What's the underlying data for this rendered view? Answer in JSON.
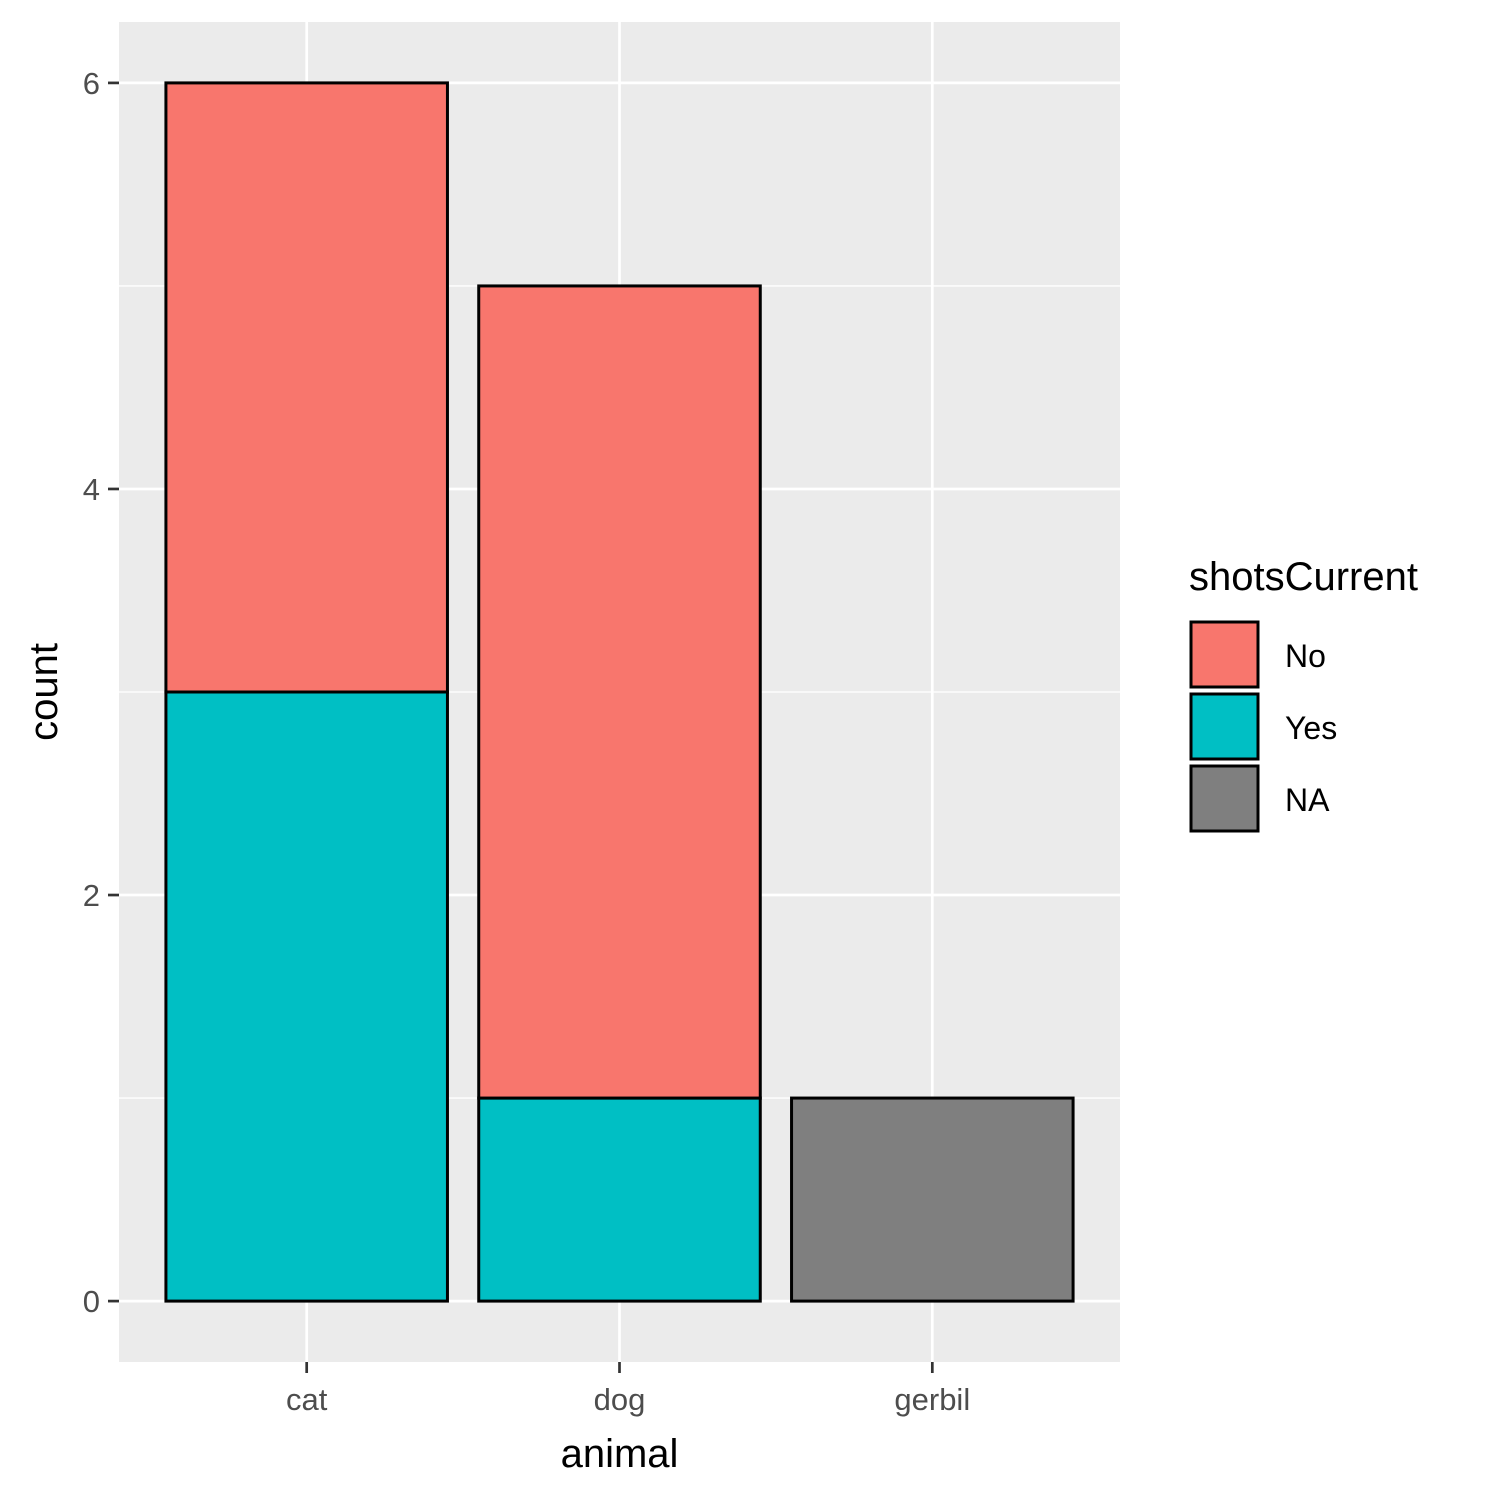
{
  "chart_data": {
    "type": "bar",
    "stacked": true,
    "categories": [
      "cat",
      "dog",
      "gerbil"
    ],
    "series": [
      {
        "name": "No",
        "values": [
          3,
          4,
          0
        ],
        "color": "#F8766D"
      },
      {
        "name": "Yes",
        "values": [
          3,
          1,
          0
        ],
        "color": "#00BFC4"
      },
      {
        "name": "NA",
        "values": [
          0,
          0,
          1
        ],
        "color": "#7F7F7F"
      }
    ],
    "stack_order_bottom_to_top": [
      "Yes",
      "No",
      "NA"
    ],
    "xlabel": "animal",
    "ylabel": "count",
    "ylim": [
      -0.3,
      6.3
    ],
    "yticks": [
      0,
      2,
      4,
      6
    ],
    "grid": true,
    "panel_background": "#EBEBEB",
    "grid_color": "#FFFFFF",
    "bar_outline": "#000000",
    "legend": {
      "title": "shotsCurrent",
      "position": "right",
      "entries": [
        "No",
        "Yes",
        "NA"
      ]
    }
  }
}
